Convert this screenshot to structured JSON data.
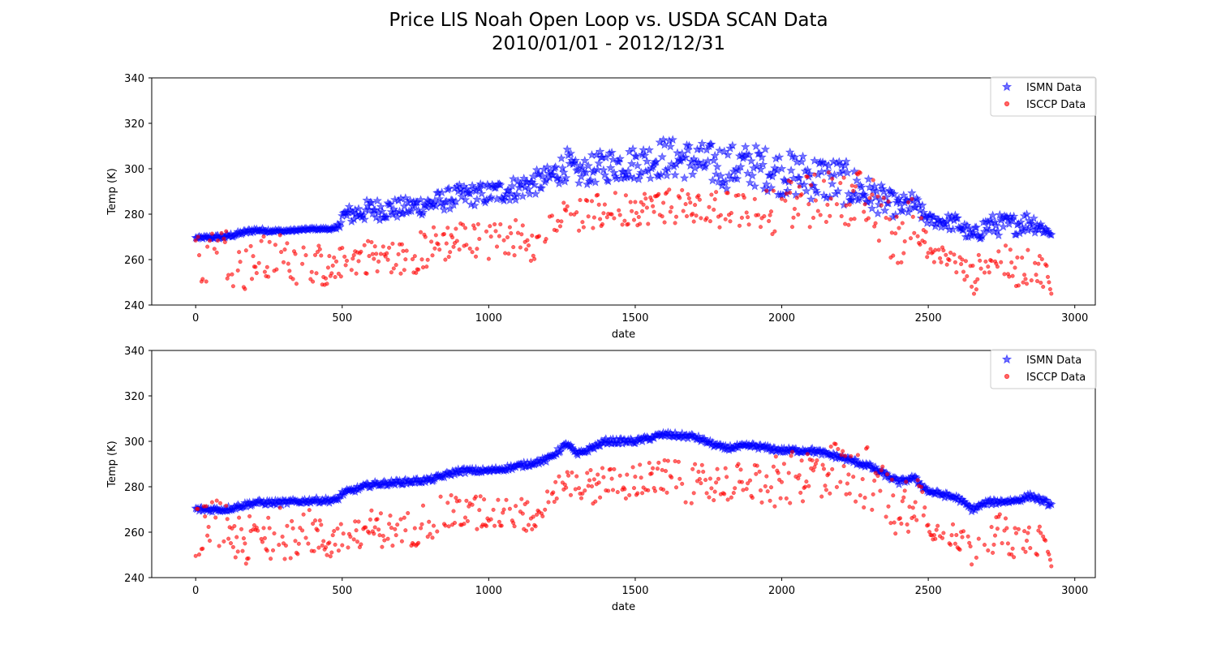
{
  "figure": {
    "title_line1": "Price LIS Noah Open Loop vs. USDA SCAN Data",
    "title_line2": "2010/01/01 - 2012/12/31"
  },
  "colors": {
    "ismn": "#0000ff",
    "isccp": "#ff0000"
  },
  "chart_data": [
    {
      "type": "scatter",
      "xlabel": "date",
      "ylabel": "Temp (K)",
      "xlim": [
        -150,
        3070
      ],
      "ylim": [
        240,
        340
      ],
      "xticks": [
        0,
        500,
        1000,
        1500,
        2000,
        2500,
        3000
      ],
      "yticks": [
        240,
        260,
        280,
        300,
        320,
        340
      ],
      "legend": {
        "placement": "top-right",
        "entries": [
          "ISMN Data",
          "ISCCP Data"
        ]
      },
      "grid": false,
      "series": [
        {
          "name": "ISMN Data",
          "marker": "star",
          "color": "#0000ff",
          "x": [
            0,
            100,
            200,
            300,
            400,
            480,
            500,
            600,
            700,
            800,
            900,
            1000,
            1100,
            1200,
            1270,
            1300,
            1400,
            1500,
            1600,
            1700,
            1800,
            1900,
            2000,
            2100,
            2200,
            2300,
            2400,
            2450,
            2500,
            2600,
            2650,
            2700,
            2800,
            2850,
            2920
          ],
          "y_low": [
            269,
            269,
            272,
            272,
            273,
            273,
            275,
            277,
            278,
            280,
            283,
            284,
            286,
            290,
            295,
            292,
            294,
            295,
            296,
            295,
            291,
            292,
            288,
            286,
            284,
            281,
            278,
            279,
            275,
            272,
            267,
            270,
            271,
            272,
            270
          ],
          "y_high": [
            270,
            271,
            274,
            273,
            274,
            274,
            283,
            287,
            287,
            289,
            293,
            294,
            297,
            301,
            309,
            303,
            309,
            310,
            314,
            312,
            311,
            311,
            308,
            307,
            305,
            296,
            288,
            290,
            280,
            280,
            273,
            280,
            280,
            282,
            273
          ]
        },
        {
          "name": "ISCCP Data",
          "marker": "circle",
          "color": "#ff0000",
          "x": [
            0,
            100,
            160,
            200,
            300,
            400,
            450,
            500,
            600,
            700,
            800,
            900,
            1000,
            1100,
            1160,
            1200,
            1270,
            1300,
            1400,
            1500,
            1600,
            1700,
            1800,
            1900,
            2000,
            2100,
            2200,
            2300,
            2350,
            2400,
            2450,
            2480,
            2500,
            2550,
            2600,
            2650,
            2700,
            2750,
            2800,
            2850,
            2900,
            2920
          ],
          "y_low": [
            249,
            252,
            244,
            248,
            248,
            250,
            247,
            252,
            254,
            252,
            256,
            262,
            260,
            262,
            258,
            268,
            278,
            272,
            273,
            275,
            276,
            272,
            273,
            273,
            270,
            274,
            277,
            268,
            262,
            257,
            262,
            268,
            257,
            256,
            252,
            244,
            250,
            252,
            248,
            248,
            248,
            245
          ],
          "y_high": [
            271,
            276,
            264,
            270,
            272,
            270,
            262,
            266,
            270,
            268,
            275,
            277,
            276,
            278,
            270,
            280,
            288,
            286,
            290,
            290,
            292,
            290,
            290,
            291,
            294,
            298,
            300,
            299,
            290,
            280,
            293,
            285,
            265,
            266,
            264,
            258,
            268,
            268,
            262,
            265,
            262,
            245
          ]
        }
      ]
    },
    {
      "type": "scatter",
      "xlabel": "date",
      "ylabel": "Temp (K)",
      "xlim": [
        -150,
        3070
      ],
      "ylim": [
        240,
        340
      ],
      "xticks": [
        0,
        500,
        1000,
        1500,
        2000,
        2500,
        3000
      ],
      "yticks": [
        240,
        260,
        280,
        300,
        320,
        340
      ],
      "legend": {
        "placement": "top-right",
        "entries": [
          "ISMN Data",
          "ISCCP Data"
        ]
      },
      "grid": false,
      "series": [
        {
          "name": "ISMN Data",
          "marker": "star",
          "color": "#0000ff",
          "x": [
            0,
            100,
            200,
            300,
            400,
            480,
            500,
            600,
            700,
            800,
            900,
            1000,
            1100,
            1200,
            1270,
            1300,
            1400,
            1500,
            1600,
            1700,
            1800,
            1900,
            2000,
            2100,
            2200,
            2300,
            2400,
            2450,
            2500,
            2600,
            2650,
            2700,
            2800,
            2850,
            2920
          ],
          "y": [
            270,
            270,
            273,
            273,
            274,
            274,
            277,
            281,
            282,
            283,
            287,
            287,
            289,
            292,
            299,
            294,
            300,
            300,
            303,
            302,
            297,
            298,
            296,
            296,
            293,
            289,
            282,
            284,
            278,
            275,
            270,
            273,
            274,
            276,
            272
          ]
        },
        {
          "name": "ISCCP Data",
          "marker": "circle",
          "color": "#ff0000",
          "x": [
            0,
            100,
            160,
            200,
            300,
            400,
            450,
            500,
            600,
            700,
            800,
            900,
            1000,
            1100,
            1160,
            1200,
            1270,
            1300,
            1400,
            1500,
            1600,
            1700,
            1800,
            1900,
            2000,
            2100,
            2200,
            2300,
            2350,
            2400,
            2450,
            2480,
            2500,
            2550,
            2600,
            2650,
            2700,
            2750,
            2800,
            2850,
            2900,
            2920
          ],
          "y_low": [
            249,
            252,
            244,
            248,
            248,
            250,
            247,
            252,
            254,
            252,
            256,
            262,
            260,
            262,
            258,
            268,
            278,
            272,
            273,
            275,
            276,
            272,
            273,
            273,
            270,
            274,
            277,
            268,
            262,
            257,
            262,
            268,
            257,
            256,
            252,
            244,
            250,
            252,
            248,
            248,
            248,
            245
          ],
          "y_high": [
            271,
            276,
            264,
            270,
            272,
            270,
            262,
            266,
            270,
            268,
            275,
            277,
            276,
            278,
            270,
            280,
            288,
            286,
            290,
            290,
            292,
            290,
            290,
            291,
            294,
            298,
            300,
            299,
            290,
            280,
            293,
            285,
            265,
            266,
            264,
            258,
            268,
            268,
            262,
            265,
            262,
            245
          ]
        }
      ]
    }
  ]
}
